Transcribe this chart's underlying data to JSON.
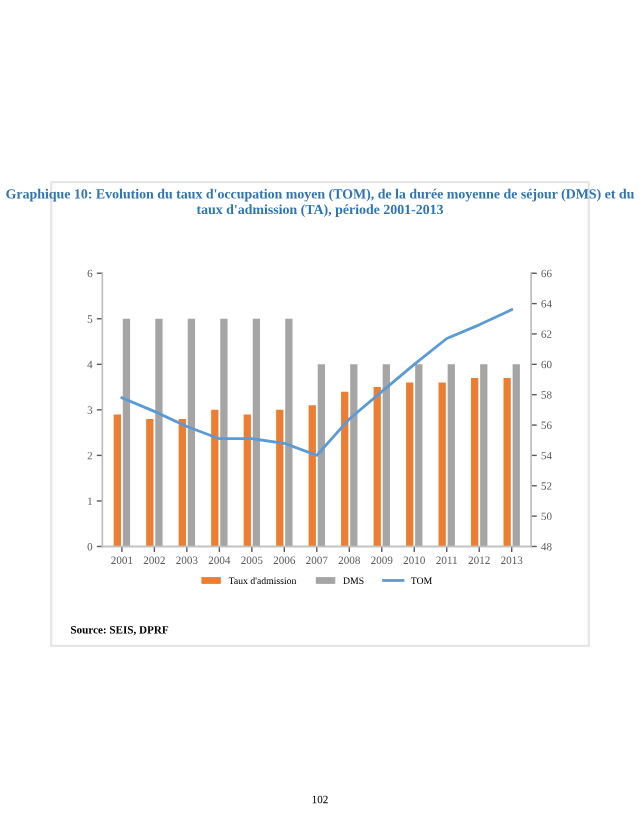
{
  "chart_data": {
    "type": "bar",
    "title": "Graphique 10: Evolution du taux d'occupation moyen (TOM), de la durée moyenne de séjour (DMS) et du taux d'admission (TA), période 2001-2013",
    "categories": [
      "2001",
      "2002",
      "2003",
      "2004",
      "2005",
      "2006",
      "2007",
      "2008",
      "2009",
      "2010",
      "2011",
      "2012",
      "2013"
    ],
    "series": [
      {
        "name": "Taux d'admission",
        "color": "#ed7d31",
        "values": [
          2.9,
          2.8,
          2.8,
          3.0,
          2.9,
          3.0,
          3.1,
          3.4,
          3.5,
          3.6,
          3.6,
          3.7,
          3.7
        ]
      },
      {
        "name": "DMS",
        "color": "#a5a5a5",
        "values": [
          5,
          5,
          5,
          5,
          5,
          5,
          4,
          4,
          4,
          4,
          4,
          4,
          4
        ]
      },
      {
        "name": "TOM",
        "color": "#5b9bd5",
        "type": "line",
        "axis": "y2",
        "values": [
          57.8,
          56.9,
          55.9,
          55.1,
          55.1,
          54.8,
          54.0,
          56.4,
          58.2,
          60.0,
          61.7,
          62.6,
          63.6
        ]
      }
    ],
    "ylim": [
      0,
      6
    ],
    "yticks": [
      0,
      1,
      2,
      3,
      4,
      5,
      6
    ],
    "y2lim": [
      48,
      66
    ],
    "y2ticks": [
      48,
      50,
      52,
      54,
      56,
      58,
      60,
      62,
      64,
      66
    ],
    "legend": "bottom",
    "grid": false,
    "marker": "none",
    "line_style": "solid",
    "annotations": [
      "Source: SEIS, DPRF",
      "102"
    ]
  }
}
